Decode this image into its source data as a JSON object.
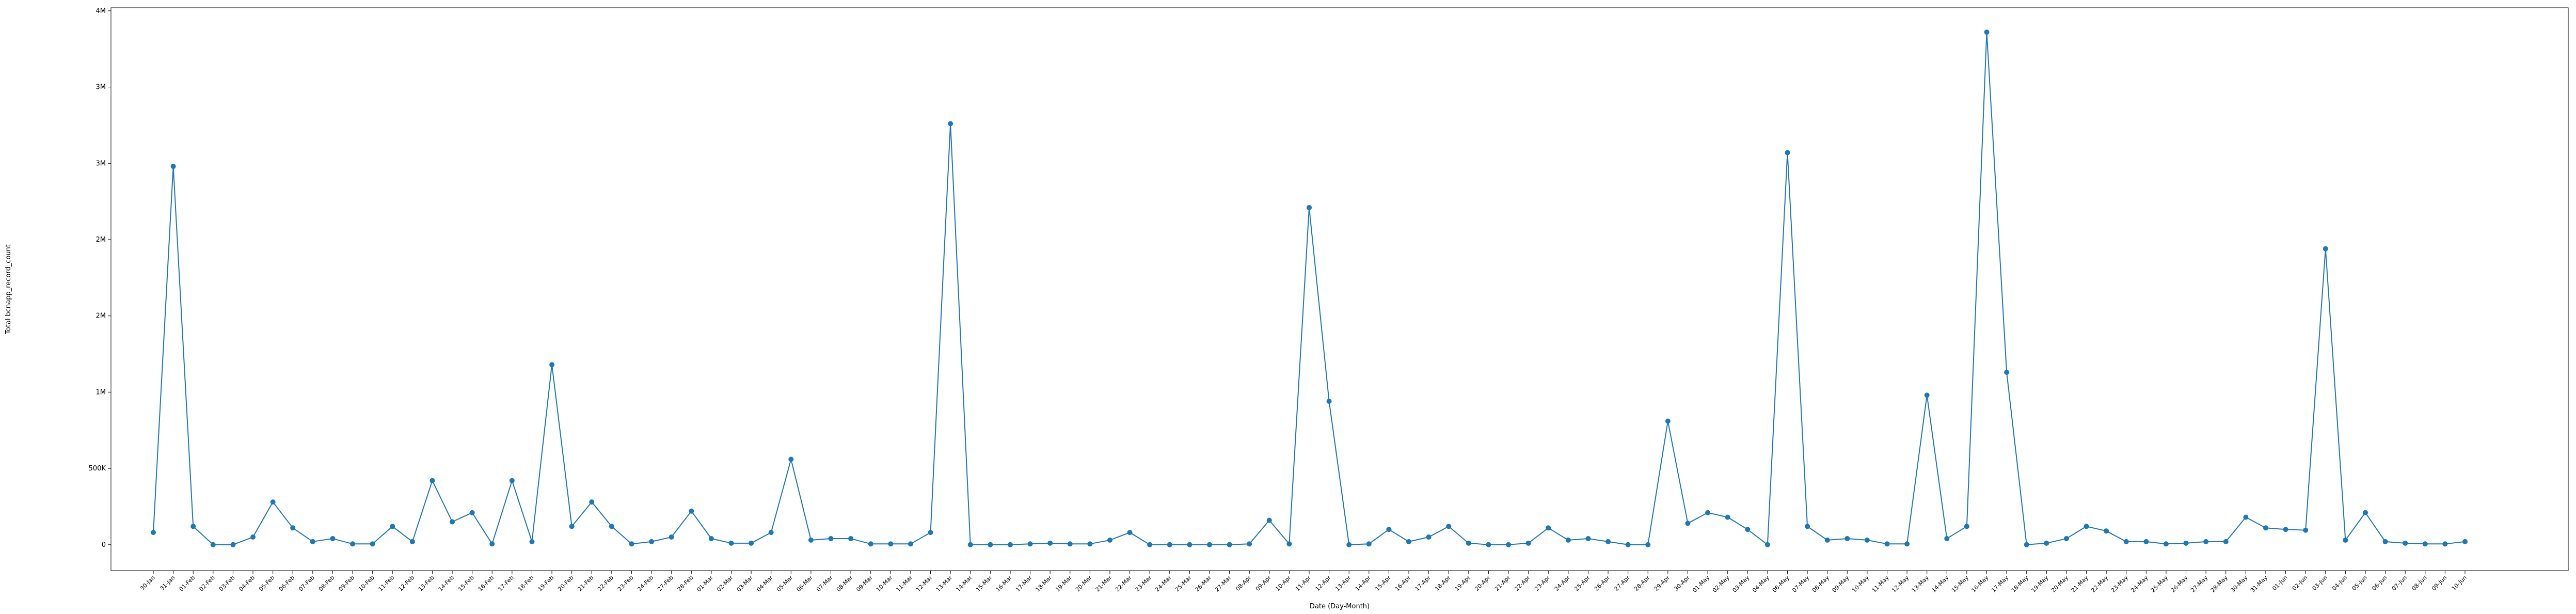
{
  "chart_data": {
    "type": "line",
    "xlabel": "Date (Day-Month)",
    "ylabel": "Total bcnapp_record_count",
    "categories": [
      "30-Jan",
      "31-Jan",
      "01-Feb",
      "02-Feb",
      "03-Feb",
      "04-Feb",
      "05-Feb",
      "06-Feb",
      "07-Feb",
      "08-Feb",
      "09-Feb",
      "10-Feb",
      "11-Feb",
      "12-Feb",
      "13-Feb",
      "14-Feb",
      "15-Feb",
      "16-Feb",
      "17-Feb",
      "18-Feb",
      "19-Feb",
      "20-Feb",
      "21-Feb",
      "22-Feb",
      "23-Feb",
      "24-Feb",
      "27-Feb",
      "28-Feb",
      "01-Mar",
      "02-Mar",
      "03-Mar",
      "04-Mar",
      "05-Mar",
      "06-Mar",
      "07-Mar",
      "08-Mar",
      "09-Mar",
      "10-Mar",
      "11-Mar",
      "12-Mar",
      "13-Mar",
      "14-Mar",
      "15-Mar",
      "16-Mar",
      "17-Mar",
      "18-Mar",
      "19-Mar",
      "20-Mar",
      "21-Mar",
      "22-Mar",
      "23-Mar",
      "24-Mar",
      "25-Mar",
      "26-Mar",
      "27-Mar",
      "08-Apr",
      "09-Apr",
      "10-Apr",
      "11-Apr",
      "12-Apr",
      "13-Apr",
      "14-Apr",
      "15-Apr",
      "16-Apr",
      "17-Apr",
      "18-Apr",
      "19-Apr",
      "20-Apr",
      "21-Apr",
      "22-Apr",
      "23-Apr",
      "24-Apr",
      "25-Apr",
      "26-Apr",
      "27-Apr",
      "28-Apr",
      "29-Apr",
      "30-Apr",
      "01-May",
      "02-May",
      "03-May",
      "04-May",
      "06-May",
      "07-May",
      "08-May",
      "09-May",
      "10-May",
      "11-May",
      "12-May",
      "13-May",
      "14-May",
      "15-May",
      "16-May",
      "17-May",
      "18-May",
      "19-May",
      "20-May",
      "21-May",
      "22-May",
      "23-May",
      "24-May",
      "25-May",
      "26-May",
      "27-May",
      "28-May",
      "30-May",
      "31-May",
      "01-Jun",
      "02-Jun",
      "03-Jun",
      "04-Jun",
      "05-Jun",
      "06-Jun",
      "07-Jun",
      "08-Jun",
      "09-Jun",
      "10-Jun"
    ],
    "series": [
      {
        "color": "#1f77b4",
        "values": [
          80000,
          2480000,
          120000,
          0,
          0,
          50000,
          280000,
          110000,
          20000,
          40000,
          5000,
          5000,
          120000,
          20000,
          420000,
          150000,
          210000,
          5000,
          420000,
          20000,
          1180000,
          120000,
          280000,
          120000,
          5000,
          20000,
          50000,
          220000,
          40000,
          10000,
          10000,
          80000,
          560000,
          30000,
          40000,
          40000,
          5000,
          5000,
          5000,
          80000,
          2760000,
          0,
          0,
          0,
          5000,
          10000,
          5000,
          5000,
          30000,
          80000,
          0,
          0,
          0,
          0,
          0,
          5000,
          160000,
          5000,
          2210000,
          940000,
          0,
          5000,
          100000,
          20000,
          50000,
          120000,
          10000,
          0,
          0,
          10000,
          110000,
          30000,
          40000,
          20000,
          0,
          0,
          810000,
          140000,
          210000,
          180000,
          100000,
          0,
          2570000,
          120000,
          30000,
          40000,
          30000,
          5000,
          5000,
          980000,
          40000,
          120000,
          3360000,
          1130000,
          0,
          10000,
          40000,
          120000,
          90000,
          20000,
          20000,
          5000,
          10000,
          20000,
          20000,
          180000,
          110000,
          100000,
          95000,
          1940000,
          30000,
          210000,
          20000,
          10000,
          5000,
          5000,
          20000
        ]
      }
    ],
    "ylim": [
      -170000,
      3520000
    ],
    "yticks": [
      0,
      {
        "value": 500000,
        "label": "500K"
      },
      {
        "value": 1000000,
        "label": "1M"
      },
      {
        "value": 1500000,
        "label": "2M"
      },
      {
        "value": 2000000,
        "label": "2M"
      },
      {
        "value": 2500000,
        "label": "3M"
      },
      {
        "value": 3000000,
        "label": "3M"
      },
      {
        "value": 3500000,
        "label": "4M"
      }
    ],
    "grid": false
  }
}
